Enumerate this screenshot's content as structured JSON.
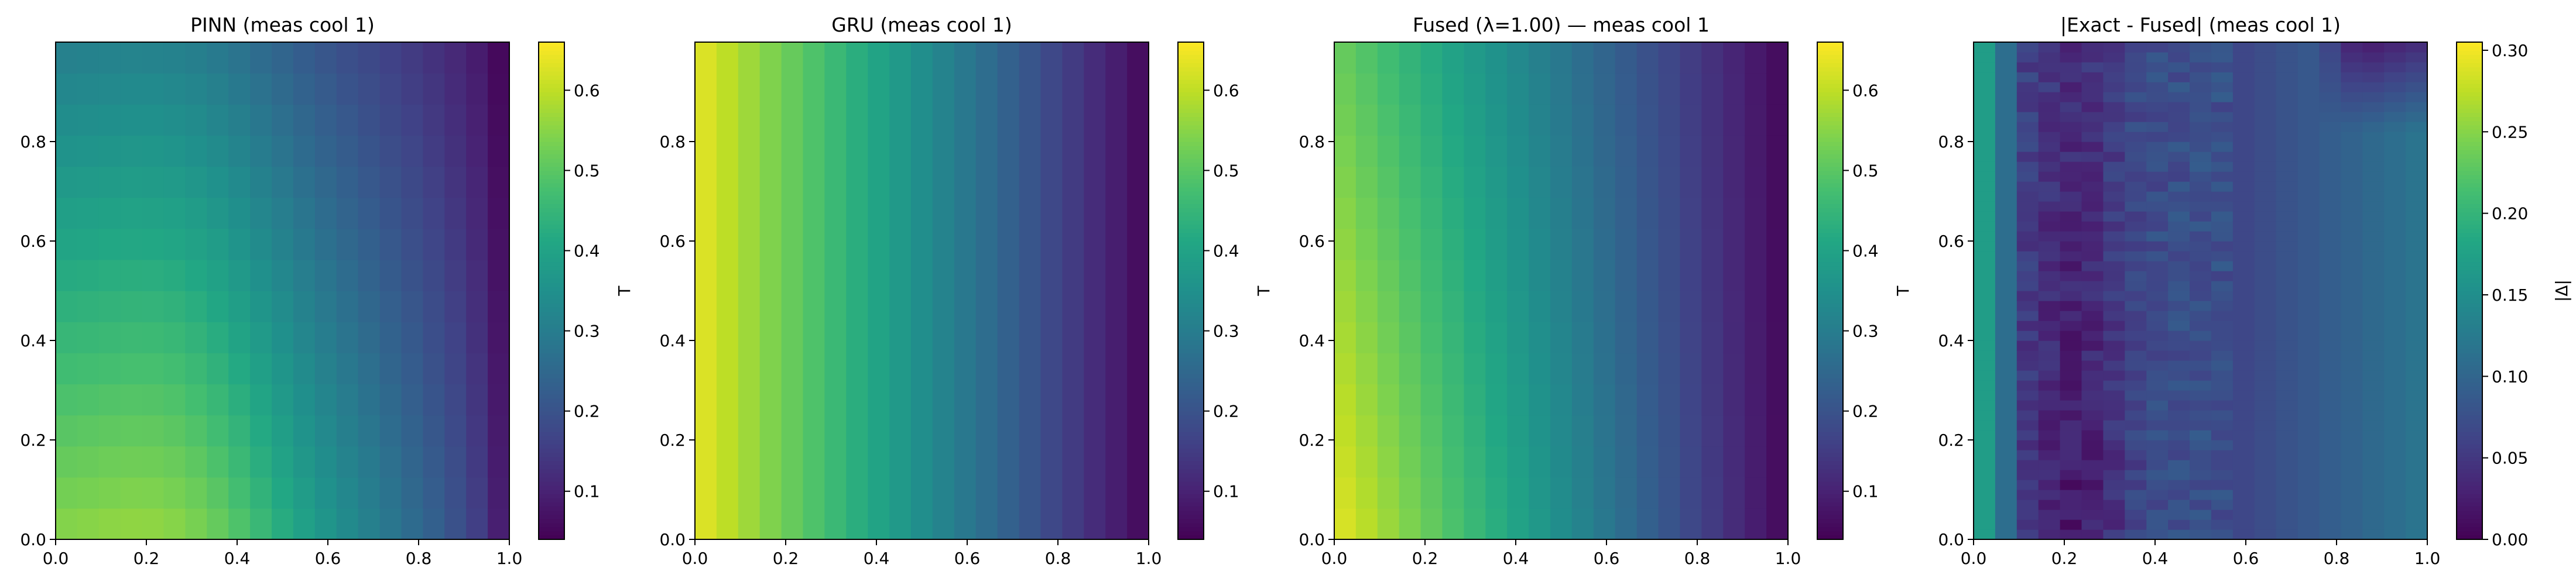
{
  "chart_data": [
    {
      "type": "heatmap",
      "title": "PINN (meas cool 1)",
      "field": "pinn",
      "xlabel": "",
      "ylabel": "",
      "xlim": [
        0.0,
        1.0
      ],
      "ylim": [
        0.0,
        1.0
      ],
      "x_ticks": [
        "0.0",
        "0.2",
        "0.4",
        "0.6",
        "0.8",
        "1.0"
      ],
      "y_ticks": [
        "0.0",
        "0.2",
        "0.4",
        "0.6",
        "0.8"
      ],
      "colorbar": {
        "label": "T",
        "range": [
          0.04,
          0.66
        ],
        "ticks": [
          "0.1",
          "0.2",
          "0.3",
          "0.4",
          "0.5",
          "0.6"
        ]
      },
      "colormap": "viridis",
      "grid": {
        "nx": 21,
        "ny": 16
      },
      "approx_values": {
        "min_at_x1": 0.05,
        "max_near_x0.3_y0": 0.64,
        "at_x0_y1": 0.28,
        "at_x0_y0": 0.5
      }
    },
    {
      "type": "heatmap",
      "title": "GRU (meas cool 1)",
      "field": "gru",
      "xlabel": "",
      "ylabel": "",
      "xlim": [
        0.0,
        1.0
      ],
      "ylim": [
        0.0,
        1.0
      ],
      "x_ticks": [
        "0.0",
        "0.2",
        "0.4",
        "0.6",
        "0.8",
        "1.0"
      ],
      "y_ticks": [
        "0.0",
        "0.2",
        "0.4",
        "0.6",
        "0.8"
      ],
      "colorbar": {
        "label": "T",
        "range": [
          0.04,
          0.66
        ],
        "ticks": [
          "0.1",
          "0.2",
          "0.3",
          "0.4",
          "0.5",
          "0.6"
        ]
      },
      "colormap": "viridis",
      "grid": {
        "nx": 21,
        "ny": 1
      },
      "approx_values": {
        "at_x0": 0.64,
        "at_x0.5": 0.34,
        "at_x1": 0.05
      }
    },
    {
      "type": "heatmap",
      "title": "Fused (λ=1.00) — meas cool 1",
      "field": "fused",
      "xlabel": "",
      "ylabel": "",
      "xlim": [
        0.0,
        1.0
      ],
      "ylim": [
        0.0,
        1.0
      ],
      "x_ticks": [
        "0.0",
        "0.2",
        "0.4",
        "0.6",
        "0.8",
        "1.0"
      ],
      "y_ticks": [
        "0.0",
        "0.2",
        "0.4",
        "0.6",
        "0.8"
      ],
      "colorbar": {
        "label": "T",
        "range": [
          0.04,
          0.66
        ],
        "ticks": [
          "0.1",
          "0.2",
          "0.3",
          "0.4",
          "0.5",
          "0.6"
        ]
      },
      "colormap": "viridis",
      "grid": {
        "nx": 21,
        "ny": 16
      },
      "approx_values": {
        "at_x0_y0": 0.64,
        "at_x0_y1": 0.52,
        "at_x1": 0.05
      }
    },
    {
      "type": "heatmap",
      "title": "|Exact - Fused| (meas cool 1)",
      "field": "error",
      "xlabel": "",
      "ylabel": "",
      "xlim": [
        0.0,
        1.0
      ],
      "ylim": [
        0.0,
        1.0
      ],
      "x_ticks": [
        "0.0",
        "0.2",
        "0.4",
        "0.6",
        "0.8",
        "1.0"
      ],
      "y_ticks": [
        "0.0",
        "0.2",
        "0.4",
        "0.6",
        "0.8"
      ],
      "colorbar": {
        "label": "|Δ|",
        "range": [
          0.0,
          0.305
        ],
        "ticks": [
          "0.00",
          "0.05",
          "0.10",
          "0.15",
          "0.20",
          "0.25",
          "0.30"
        ]
      },
      "colormap": "viridis",
      "grid": {
        "nx": 21,
        "ny": 50
      },
      "approx_values": {
        "at_x0": 0.17,
        "at_x0.2_y0.3": 0.02,
        "at_x0.8": 0.11,
        "at_x0.9_y0.95": 0.02
      }
    }
  ]
}
